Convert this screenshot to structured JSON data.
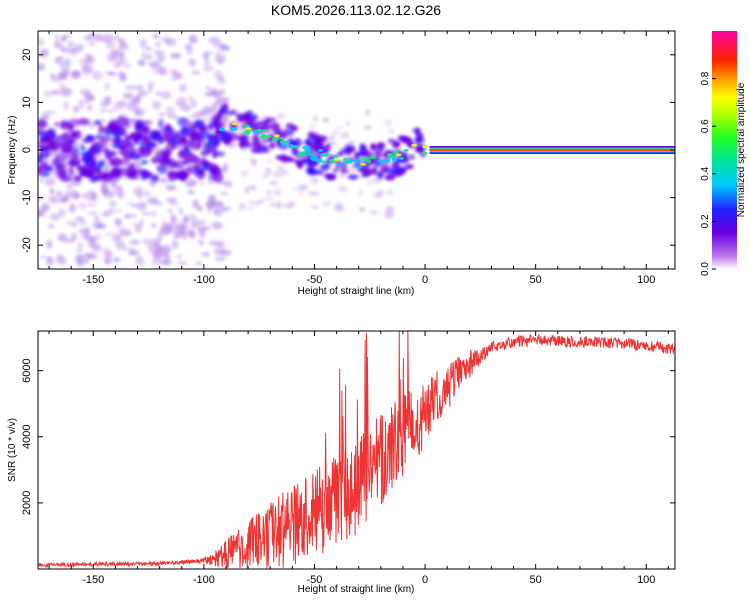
{
  "title": "KOM5.2026.113.02.12.G26",
  "chart_data": [
    {
      "type": "heatmap",
      "xlabel": "Height of straight line (km)",
      "ylabel": "Frequency (Hz)",
      "xlim": [
        -175,
        113
      ],
      "ylim": [
        -25,
        25
      ],
      "xticks": [
        -150,
        -100,
        -50,
        0,
        50,
        100
      ],
      "yticks": [
        -20,
        -10,
        0,
        10,
        20
      ],
      "colorbar": {
        "label": "Normalized spectral amplitude",
        "range": [
          0,
          1
        ],
        "ticks": [
          0,
          0.2,
          0.4,
          0.6,
          0.8
        ]
      },
      "ridge": [
        {
          "x": -90,
          "y": 5.5
        },
        {
          "x": -80,
          "y": 4.5
        },
        {
          "x": -70,
          "y": 3
        },
        {
          "x": -60,
          "y": 1
        },
        {
          "x": -50,
          "y": -1
        },
        {
          "x": -40,
          "y": -2
        },
        {
          "x": -30,
          "y": -3
        },
        {
          "x": -20,
          "y": -2.5
        },
        {
          "x": -10,
          "y": -1
        },
        {
          "x": -5,
          "y": 1
        },
        {
          "x": 0,
          "y": 0.5
        },
        {
          "x": 10,
          "y": 0
        },
        {
          "x": 113,
          "y": 0
        }
      ]
    },
    {
      "type": "line",
      "xlabel": "Height of straight line (km)",
      "ylabel": "SNR (10 * v/v)",
      "xlim": [
        -175,
        113
      ],
      "ylim": [
        0,
        7200
      ],
      "xticks": [
        -150,
        -100,
        -50,
        0,
        50,
        100
      ],
      "yticks": [
        2000,
        4000,
        6000
      ],
      "color": "#ee3333",
      "envelope": [
        {
          "x": -175,
          "y": 120
        },
        {
          "x": -150,
          "y": 140
        },
        {
          "x": -120,
          "y": 160
        },
        {
          "x": -100,
          "y": 250
        },
        {
          "x": -90,
          "y": 450
        },
        {
          "x": -80,
          "y": 700
        },
        {
          "x": -70,
          "y": 1000
        },
        {
          "x": -60,
          "y": 1300
        },
        {
          "x": -50,
          "y": 1600
        },
        {
          "x": -40,
          "y": 2000
        },
        {
          "x": -30,
          "y": 2600
        },
        {
          "x": -20,
          "y": 3300
        },
        {
          "x": -10,
          "y": 4000
        },
        {
          "x": 0,
          "y": 4700
        },
        {
          "x": 10,
          "y": 5500
        },
        {
          "x": 20,
          "y": 6200
        },
        {
          "x": 30,
          "y": 6700
        },
        {
          "x": 40,
          "y": 6880
        },
        {
          "x": 50,
          "y": 6920
        },
        {
          "x": 70,
          "y": 6880
        },
        {
          "x": 90,
          "y": 6820
        },
        {
          "x": 113,
          "y": 6650
        }
      ]
    }
  ]
}
